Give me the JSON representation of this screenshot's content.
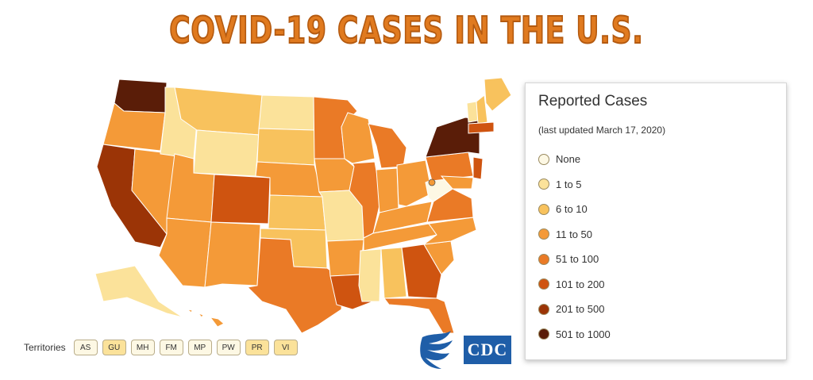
{
  "title": "COVID-19 CASES IN THE U.S.",
  "legend": {
    "title": "Reported Cases",
    "subtitle": "(last updated March 17, 2020)",
    "items": [
      {
        "label": "None",
        "color": "#fdf8e4"
      },
      {
        "label": "1 to 5",
        "color": "#fbe29a"
      },
      {
        "label": "6 to 10",
        "color": "#f8c25d"
      },
      {
        "label": "11 to 50",
        "color": "#f49a38"
      },
      {
        "label": "51 to 100",
        "color": "#ea7a26"
      },
      {
        "label": "101 to 200",
        "color": "#cf5410"
      },
      {
        "label": "201 to 500",
        "color": "#9b3406"
      },
      {
        "label": "501 to 1000",
        "color": "#5a1d08"
      }
    ]
  },
  "territories": {
    "label": "Territories",
    "items": [
      {
        "code": "AS",
        "color": "#fdf8e4"
      },
      {
        "code": "GU",
        "color": "#fbe29a"
      },
      {
        "code": "MH",
        "color": "#fdf8e4"
      },
      {
        "code": "FM",
        "color": "#fdf8e4"
      },
      {
        "code": "MP",
        "color": "#fdf8e4"
      },
      {
        "code": "PW",
        "color": "#fdf8e4"
      },
      {
        "code": "PR",
        "color": "#fbe29a"
      },
      {
        "code": "VI",
        "color": "#fbe29a"
      }
    ]
  },
  "logos": {
    "cdc": "CDC",
    "hhs_icon": "hhs-eagle-icon"
  },
  "map": {
    "states": [
      {
        "name": "WA",
        "color": "#5a1d08"
      },
      {
        "name": "OR",
        "color": "#f49a38"
      },
      {
        "name": "CA",
        "color": "#9b3406"
      },
      {
        "name": "NV",
        "color": "#f49a38"
      },
      {
        "name": "ID",
        "color": "#fbe29a"
      },
      {
        "name": "MT",
        "color": "#f8c25d"
      },
      {
        "name": "WY",
        "color": "#fbe29a"
      },
      {
        "name": "UT",
        "color": "#f49a38"
      },
      {
        "name": "AZ",
        "color": "#f49a38"
      },
      {
        "name": "CO",
        "color": "#cf5410"
      },
      {
        "name": "NM",
        "color": "#f49a38"
      },
      {
        "name": "ND",
        "color": "#fbe29a"
      },
      {
        "name": "SD",
        "color": "#f8c25d"
      },
      {
        "name": "NE",
        "color": "#f49a38"
      },
      {
        "name": "KS",
        "color": "#f8c25d"
      },
      {
        "name": "OK",
        "color": "#f8c25d"
      },
      {
        "name": "TX",
        "color": "#ea7a26"
      },
      {
        "name": "MN",
        "color": "#ea7a26"
      },
      {
        "name": "IA",
        "color": "#f49a38"
      },
      {
        "name": "MO",
        "color": "#fbe29a"
      },
      {
        "name": "AR",
        "color": "#f49a38"
      },
      {
        "name": "LA",
        "color": "#cf5410"
      },
      {
        "name": "WI",
        "color": "#f49a38"
      },
      {
        "name": "IL",
        "color": "#ea7a26"
      },
      {
        "name": "MI",
        "color": "#ea7a26"
      },
      {
        "name": "IN",
        "color": "#f49a38"
      },
      {
        "name": "OH",
        "color": "#f49a38"
      },
      {
        "name": "KY",
        "color": "#f49a38"
      },
      {
        "name": "TN",
        "color": "#f49a38"
      },
      {
        "name": "MS",
        "color": "#fbe29a"
      },
      {
        "name": "AL",
        "color": "#f8c25d"
      },
      {
        "name": "GA",
        "color": "#cf5410"
      },
      {
        "name": "FL",
        "color": "#ea7a26"
      },
      {
        "name": "SC",
        "color": "#f49a38"
      },
      {
        "name": "NC",
        "color": "#f49a38"
      },
      {
        "name": "VA",
        "color": "#ea7a26"
      },
      {
        "name": "WV",
        "color": "#fdf8e4"
      },
      {
        "name": "PA",
        "color": "#ea7a26"
      },
      {
        "name": "NY",
        "color": "#5a1d08"
      },
      {
        "name": "VT",
        "color": "#fbe29a"
      },
      {
        "name": "NH",
        "color": "#f8c25d"
      },
      {
        "name": "ME",
        "color": "#f8c25d"
      },
      {
        "name": "MA",
        "color": "#cf5410"
      },
      {
        "name": "NJ",
        "color": "#cf5410"
      },
      {
        "name": "MD",
        "color": "#f49a38"
      },
      {
        "name": "AK",
        "color": "#fbe29a"
      },
      {
        "name": "HI",
        "color": "#f49a38"
      }
    ]
  }
}
